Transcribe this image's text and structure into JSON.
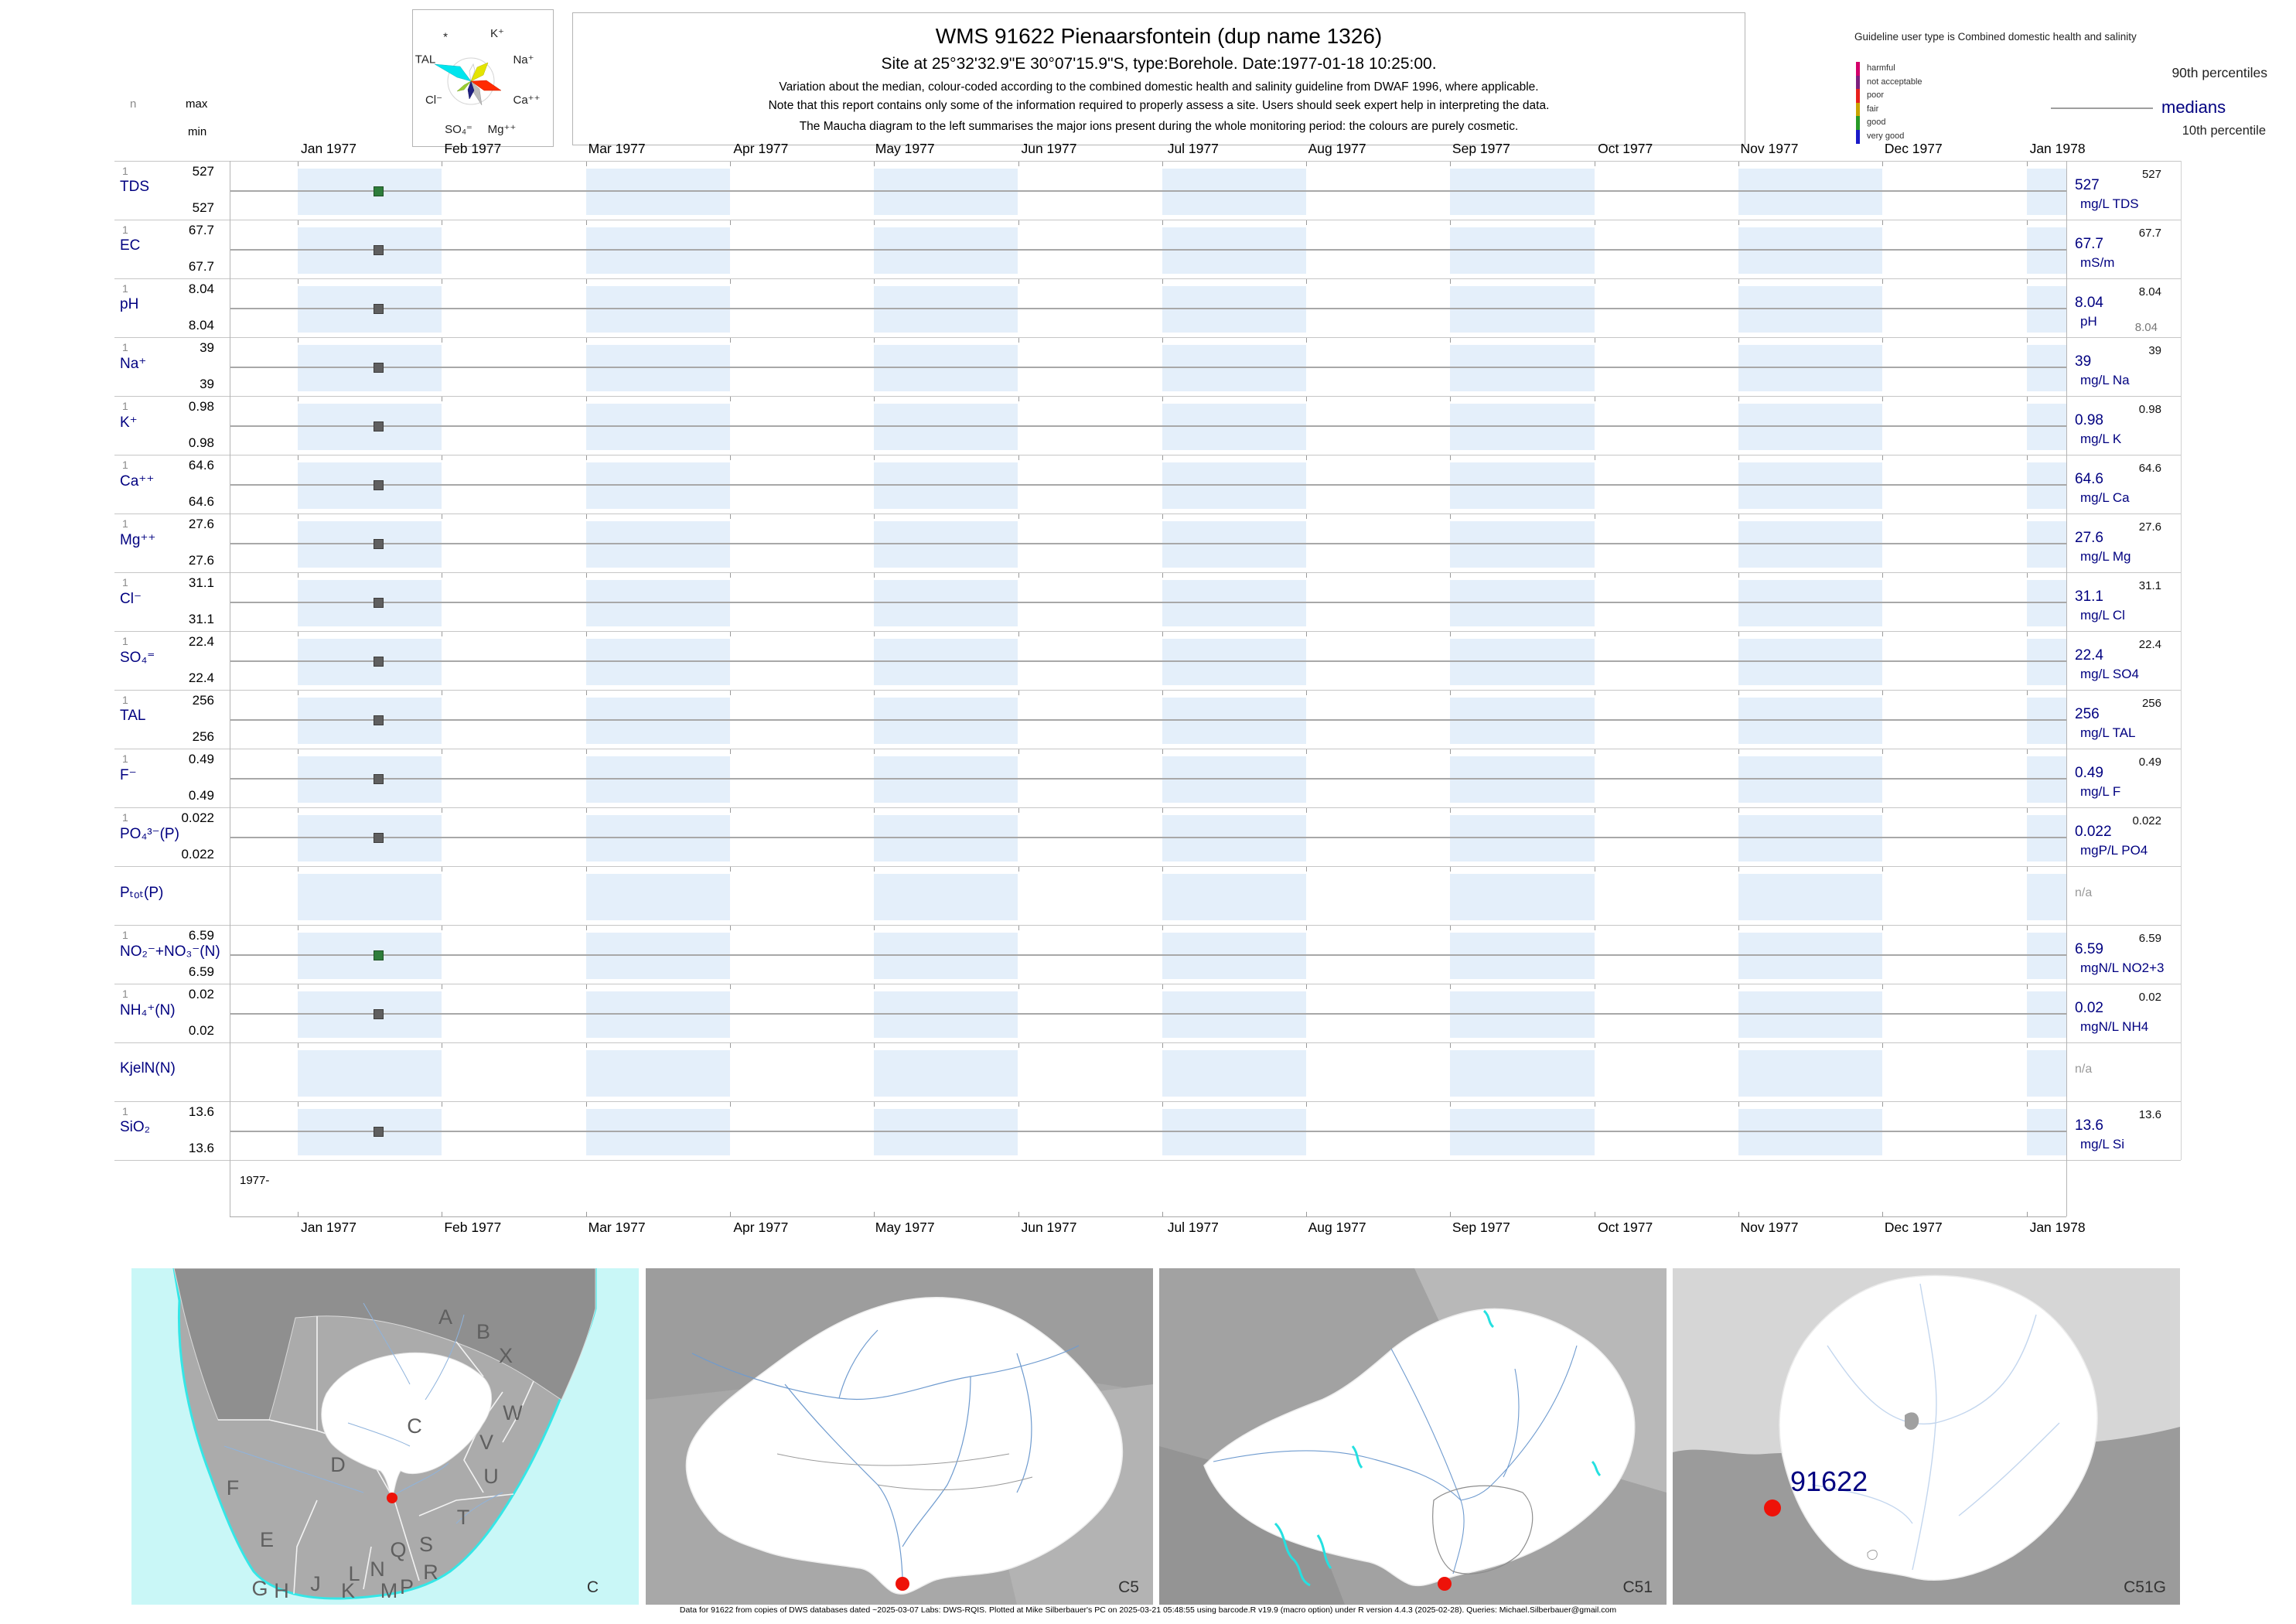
{
  "header": {
    "title": "WMS 91622  Pienaarsfontein (dup name 1326)",
    "subtitle": "Site at 25°32'32.9\"E 30°07'15.9\"S, type:Borehole. Date:1977-01-18 10:25:00.",
    "note1": "Variation about the median,  colour-coded according to the combined domestic health and salinity guideline from DWAF 1996, where applicable.",
    "note2": "Note that this report contains only some of the information required to properly assess a site. Users should seek expert help in interpreting the data.",
    "note3": "The Maucha diagram to the left summarises the major ions present during the whole monitoring period: the colours are purely cosmetic."
  },
  "stats_header": {
    "n": "n",
    "max": "max",
    "min": "min"
  },
  "maucha": {
    "labels": {
      "star": "*",
      "k": "K⁺",
      "na": "Na⁺",
      "ca": "Ca⁺⁺",
      "mg": "Mg⁺⁺",
      "so4": "SO₄⁼",
      "cl": "Cl⁻",
      "tal": "TAL"
    }
  },
  "guideline": {
    "heading": "Guideline user type is Combined domestic health and salinity",
    "classes": [
      {
        "label": "harmful",
        "color": "#d4006a"
      },
      {
        "label": "not acceptable",
        "color": "#7d1f7d"
      },
      {
        "label": "poor",
        "color": "#e8211c"
      },
      {
        "label": "fair",
        "color": "#c9a400"
      },
      {
        "label": "good",
        "color": "#279a27"
      },
      {
        "label": "very good",
        "color": "#1a1ac8"
      }
    ],
    "p90_label": "90th percentiles",
    "median_label": "medians",
    "p10_label": "10th percentile"
  },
  "axis": {
    "months": [
      "Jan 1977",
      "Feb 1977",
      "Mar 1977",
      "Apr 1977",
      "May 1977",
      "Jun 1977",
      "Jul 1977",
      "Aug 1977",
      "Sep 1977",
      "Oct 1977",
      "Nov 1977",
      "Dec 1977",
      "Jan 1978"
    ],
    "period": "1977-"
  },
  "na_text": "n/a",
  "colors": {
    "accent_navy": "#000080",
    "band_blue": "#e4effa",
    "median_line": "#a8a8a8",
    "marker_gray": "#5f5f5f",
    "marker_good_green": "#2e7d3a",
    "site_marker_red": "#ee1209",
    "coast_cyan": "#35e6e6",
    "na_gray": "#999999"
  },
  "chart_data": {
    "type": "scatter",
    "title": "WMS 91622 Pienaarsfontein (dup name 1326)",
    "sample_date": "1977-01-18 10:25:00",
    "x_range": [
      "Jan 1977",
      "Jan 1978"
    ],
    "grid": "alternating monthly bands, one row per parameter, marker plotted on median line",
    "series": [
      {
        "label": "TDS",
        "n": "1",
        "max": "527",
        "min": "527",
        "p90": "527",
        "median": "527",
        "unit": "mg/L TDS",
        "value": 527,
        "has_data": true,
        "status": "good"
      },
      {
        "label": "EC",
        "n": "1",
        "max": "67.7",
        "min": "67.7",
        "p90": "67.7",
        "median": "67.7",
        "unit": "mS/m",
        "value": 67.7,
        "has_data": true,
        "status": "none"
      },
      {
        "label": "pH",
        "n": "1",
        "max": "8.04",
        "min": "8.04",
        "p90": "8.04",
        "median": "8.04",
        "p10": "8.04",
        "unit": "pH",
        "value": 8.04,
        "has_data": true,
        "status": "none"
      },
      {
        "label": "Na⁺",
        "n": "1",
        "max": "39",
        "min": "39",
        "p90": "39",
        "median": "39",
        "unit": "mg/L Na",
        "value": 39,
        "has_data": true,
        "status": "none"
      },
      {
        "label": "K⁺",
        "n": "1",
        "max": "0.98",
        "min": "0.98",
        "p90": "0.98",
        "median": "0.98",
        "unit": "mg/L K",
        "value": 0.98,
        "has_data": true,
        "status": "none"
      },
      {
        "label": "Ca⁺⁺",
        "n": "1",
        "max": "64.6",
        "min": "64.6",
        "p90": "64.6",
        "median": "64.6",
        "unit": "mg/L Ca",
        "value": 64.6,
        "has_data": true,
        "status": "none"
      },
      {
        "label": "Mg⁺⁺",
        "n": "1",
        "max": "27.6",
        "min": "27.6",
        "p90": "27.6",
        "median": "27.6",
        "unit": "mg/L Mg",
        "value": 27.6,
        "has_data": true,
        "status": "none"
      },
      {
        "label": "Cl⁻",
        "n": "1",
        "max": "31.1",
        "min": "31.1",
        "p90": "31.1",
        "median": "31.1",
        "unit": "mg/L Cl",
        "value": 31.1,
        "has_data": true,
        "status": "none"
      },
      {
        "label": "SO₄⁼",
        "n": "1",
        "max": "22.4",
        "min": "22.4",
        "p90": "22.4",
        "median": "22.4",
        "unit": "mg/L SO4",
        "value": 22.4,
        "has_data": true,
        "status": "none"
      },
      {
        "label": "TAL",
        "n": "1",
        "max": "256",
        "min": "256",
        "p90": "256",
        "median": "256",
        "unit": "mg/L TAL",
        "value": 256,
        "has_data": true,
        "status": "none"
      },
      {
        "label": "F⁻",
        "n": "1",
        "max": "0.49",
        "min": "0.49",
        "p90": "0.49",
        "median": "0.49",
        "unit": "mg/L F",
        "value": 0.49,
        "has_data": true,
        "status": "none"
      },
      {
        "label": "PO₄³⁻(P)",
        "n": "1",
        "max": "0.022",
        "min": "0.022",
        "p90": "0.022",
        "median": "0.022",
        "unit": "mgP/L PO4",
        "value": 0.022,
        "has_data": true,
        "status": "none"
      },
      {
        "label": "Pₜₒₜ(P)",
        "has_data": false
      },
      {
        "label": "NO₂⁻+NO₃⁻(N)",
        "n": "1",
        "max": "6.59",
        "min": "6.59",
        "p90": "6.59",
        "median": "6.59",
        "unit": "mgN/L NO2+3",
        "value": 6.59,
        "has_data": true,
        "status": "good"
      },
      {
        "label": "NH₄⁺(N)",
        "n": "1",
        "max": "0.02",
        "min": "0.02",
        "p90": "0.02",
        "median": "0.02",
        "unit": "mgN/L NH4",
        "value": 0.02,
        "has_data": true,
        "status": "none"
      },
      {
        "label": "KjelN(N)",
        "has_data": false
      },
      {
        "label": "SiO₂",
        "n": "1",
        "max": "13.6",
        "min": "13.6",
        "p90": "13.6",
        "median": "13.6",
        "unit": "mg/L Si",
        "value": 13.6,
        "has_data": true,
        "status": "none"
      }
    ]
  },
  "maps": {
    "panels": [
      {
        "code": "C",
        "letters": [
          "A",
          "B",
          "X",
          "W",
          "C",
          "D",
          "V",
          "U",
          "F",
          "T",
          "E",
          "Q",
          "S",
          "R",
          "G",
          "H",
          "J",
          "K",
          "L",
          "M",
          "N",
          "P"
        ]
      },
      {
        "code": "C5"
      },
      {
        "code": "C51"
      },
      {
        "code": "C51G",
        "site_label": "91622"
      }
    ]
  },
  "footer": "Data for 91622 from copies of DWS databases dated ~2025-03-07 Labs: DWS-RQIS. Plotted at Mike Silberbauer's PC on 2025-03-21 05:48:55 using barcode.R v19.9 (macro option) under R version 4.4.3 (2025-02-28). Queries: Michael.Silberbauer@gmail.com"
}
